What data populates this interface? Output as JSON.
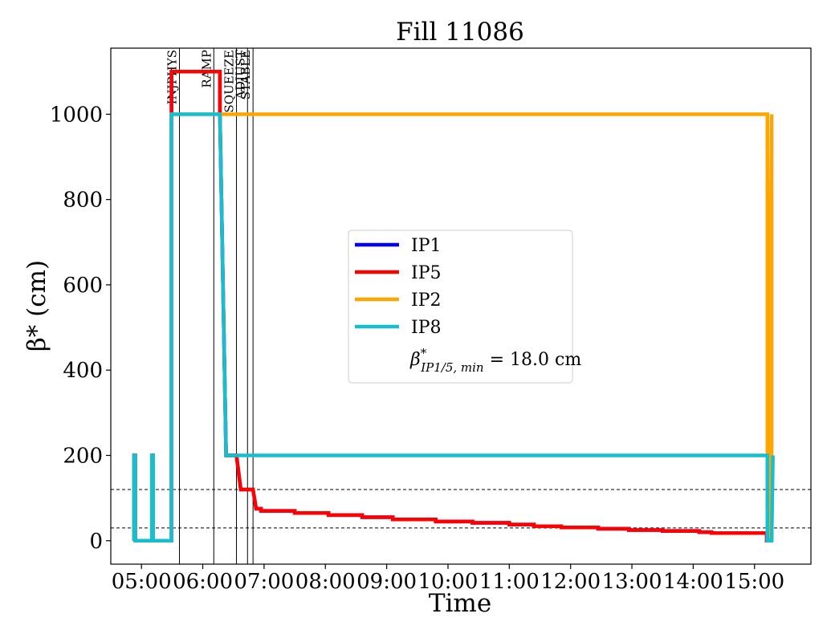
{
  "chart_data": {
    "type": "line",
    "title": "Fill 11086",
    "xlabel": "Time",
    "ylabel": "β* (cm)",
    "x_unit": "hours",
    "xlim": [
      4.5,
      15.92
    ],
    "ylim": [
      -55,
      1155
    ],
    "x_ticks": [
      {
        "value": 5,
        "label": "05:00"
      },
      {
        "value": 6,
        "label": "06:00"
      },
      {
        "value": 7,
        "label": "07:00"
      },
      {
        "value": 8,
        "label": "08:00"
      },
      {
        "value": 9,
        "label": "09:00"
      },
      {
        "value": 10,
        "label": "10:00"
      },
      {
        "value": 11,
        "label": "11:00"
      },
      {
        "value": 12,
        "label": "12:00"
      },
      {
        "value": 13,
        "label": "13:00"
      },
      {
        "value": 14,
        "label": "14:00"
      },
      {
        "value": 15,
        "label": "15:00"
      }
    ],
    "y_ticks": [
      0,
      200,
      400,
      600,
      800,
      1000
    ],
    "phases": [
      {
        "label": "INJPHYS",
        "x": 5.62
      },
      {
        "label": "RAMP",
        "x": 6.18
      },
      {
        "label": "SQUEEZE",
        "x": 6.55
      },
      {
        "label": "ADJUST",
        "x": 6.73
      },
      {
        "label": "STABLE",
        "x": 6.82
      }
    ],
    "reference_lines": [
      120,
      30
    ],
    "legend": {
      "position": "center",
      "entries": [
        "IP1",
        "IP5",
        "IP2",
        "IP8"
      ],
      "annotation": "β*_{IP1/5, min} = 18.0 cm",
      "annotation_base": "β",
      "annotation_sup": "*",
      "annotation_sub": "IP1/5, min",
      "annotation_tail": " = 18.0 cm"
    },
    "series": [
      {
        "name": "IP1",
        "color": "#0000ff",
        "points": [
          [
            4.88,
            0
          ],
          [
            4.88,
            200
          ],
          [
            4.9,
            200
          ],
          [
            4.9,
            0
          ],
          [
            5.17,
            0
          ],
          [
            5.17,
            200
          ],
          [
            5.19,
            200
          ],
          [
            5.19,
            0
          ],
          [
            5.49,
            0
          ],
          [
            5.49,
            1100
          ],
          [
            6.28,
            1100
          ],
          [
            6.28,
            1000
          ],
          [
            6.38,
            200
          ],
          [
            6.55,
            200
          ],
          [
            6.62,
            120
          ],
          [
            6.82,
            120
          ],
          [
            6.87,
            75
          ],
          [
            6.95,
            75
          ],
          [
            6.95,
            70
          ],
          [
            7.5,
            70
          ],
          [
            7.5,
            65
          ],
          [
            8.05,
            65
          ],
          [
            8.05,
            60
          ],
          [
            8.6,
            60
          ],
          [
            8.6,
            55
          ],
          [
            9.1,
            55
          ],
          [
            9.1,
            50
          ],
          [
            9.8,
            50
          ],
          [
            9.8,
            45
          ],
          [
            10.4,
            45
          ],
          [
            10.4,
            42
          ],
          [
            11.0,
            42
          ],
          [
            11.0,
            38
          ],
          [
            11.4,
            38
          ],
          [
            11.4,
            34
          ],
          [
            11.85,
            34
          ],
          [
            11.85,
            31
          ],
          [
            12.45,
            31
          ],
          [
            12.45,
            28
          ],
          [
            12.95,
            28
          ],
          [
            12.95,
            25
          ],
          [
            13.5,
            25
          ],
          [
            13.5,
            23
          ],
          [
            14.1,
            23
          ],
          [
            14.1,
            20
          ],
          [
            14.3,
            20
          ],
          [
            14.3,
            18
          ],
          [
            15.2,
            18
          ],
          [
            15.2,
            0
          ],
          [
            15.28,
            0
          ]
        ]
      },
      {
        "name": "IP5",
        "color": "#ff0000",
        "points": [
          [
            4.88,
            0
          ],
          [
            4.88,
            200
          ],
          [
            4.9,
            200
          ],
          [
            4.9,
            0
          ],
          [
            5.17,
            0
          ],
          [
            5.17,
            200
          ],
          [
            5.19,
            200
          ],
          [
            5.19,
            0
          ],
          [
            5.49,
            0
          ],
          [
            5.49,
            1100
          ],
          [
            6.28,
            1100
          ],
          [
            6.28,
            1000
          ],
          [
            6.38,
            200
          ],
          [
            6.55,
            200
          ],
          [
            6.62,
            120
          ],
          [
            6.82,
            120
          ],
          [
            6.87,
            75
          ],
          [
            6.95,
            75
          ],
          [
            6.95,
            70
          ],
          [
            7.5,
            70
          ],
          [
            7.5,
            65
          ],
          [
            8.05,
            65
          ],
          [
            8.05,
            60
          ],
          [
            8.6,
            60
          ],
          [
            8.6,
            55
          ],
          [
            9.1,
            55
          ],
          [
            9.1,
            50
          ],
          [
            9.8,
            50
          ],
          [
            9.8,
            45
          ],
          [
            10.4,
            45
          ],
          [
            10.4,
            42
          ],
          [
            11.0,
            42
          ],
          [
            11.0,
            38
          ],
          [
            11.4,
            38
          ],
          [
            11.4,
            34
          ],
          [
            11.85,
            34
          ],
          [
            11.85,
            31
          ],
          [
            12.45,
            31
          ],
          [
            12.45,
            28
          ],
          [
            12.95,
            28
          ],
          [
            12.95,
            25
          ],
          [
            13.5,
            25
          ],
          [
            13.5,
            23
          ],
          [
            14.1,
            23
          ],
          [
            14.1,
            20
          ],
          [
            14.3,
            20
          ],
          [
            14.3,
            18
          ],
          [
            15.2,
            18
          ],
          [
            15.2,
            0
          ],
          [
            15.28,
            0
          ]
        ]
      },
      {
        "name": "IP2",
        "color": "#ffa500",
        "points": [
          [
            4.88,
            0
          ],
          [
            4.88,
            200
          ],
          [
            4.9,
            200
          ],
          [
            4.9,
            0
          ],
          [
            5.17,
            0
          ],
          [
            5.17,
            200
          ],
          [
            5.19,
            200
          ],
          [
            5.19,
            0
          ],
          [
            5.49,
            0
          ],
          [
            5.49,
            1000
          ],
          [
            15.21,
            1000
          ],
          [
            15.21,
            0
          ],
          [
            15.24,
            0
          ],
          [
            15.25,
            420
          ],
          [
            15.28,
            1000
          ],
          [
            15.28,
            0
          ],
          [
            15.3,
            0
          ]
        ]
      },
      {
        "name": "IP8",
        "color": "#17becf",
        "points": [
          [
            4.88,
            0
          ],
          [
            4.88,
            200
          ],
          [
            4.9,
            200
          ],
          [
            4.9,
            0
          ],
          [
            5.17,
            0
          ],
          [
            5.17,
            200
          ],
          [
            5.19,
            200
          ],
          [
            5.19,
            0
          ],
          [
            5.49,
            0
          ],
          [
            5.49,
            1000
          ],
          [
            6.28,
            1000
          ],
          [
            6.38,
            200
          ],
          [
            15.21,
            200
          ],
          [
            15.21,
            0
          ],
          [
            15.28,
            0
          ],
          [
            15.3,
            200
          ]
        ]
      }
    ]
  }
}
